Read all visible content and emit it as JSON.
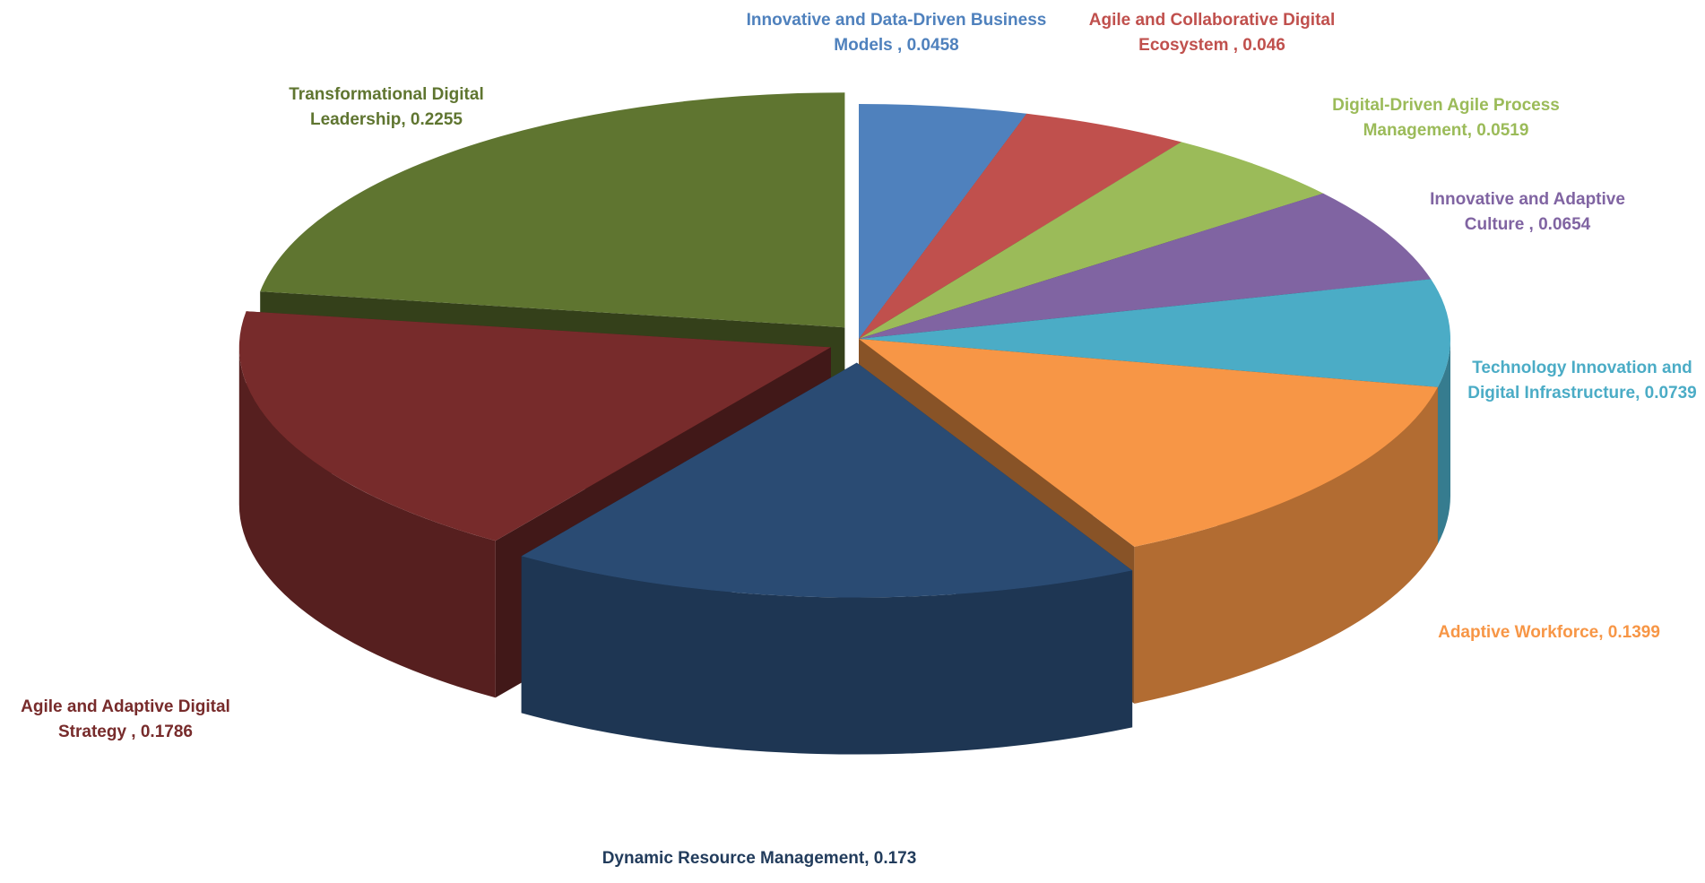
{
  "chart_data": {
    "type": "pie3d",
    "categories": null,
    "values": [
      0.0458,
      0.046,
      0.0519,
      0.0654,
      0.0739,
      0.1399,
      0.173,
      0.1786,
      0.2255
    ],
    "value_labels": [
      "Innovative and Data-Driven Business Models , 0.0458",
      "Agile and Collaborative Digital Ecosystem , 0.046",
      "Digital-Driven Agile Process Management, 0.0519",
      "Innovative and Adaptive Culture , 0.0654",
      "Technology Innovation and Digital Infrastructure, 0.0739",
      "Adaptive Workforce, 0.1399",
      "Dynamic Resource Management, 0.173",
      "Agile and Adaptive Digital Strategy , 0.1786",
      "Transformational Digital Leadership, 0.2255"
    ],
    "colors": [
      "#4f81bd",
      "#c0504d",
      "#9bbb59",
      "#8064a2",
      "#4bacc6",
      "#f79646",
      "#2a4b73",
      "#772b2b",
      "#5f7530"
    ]
  }
}
